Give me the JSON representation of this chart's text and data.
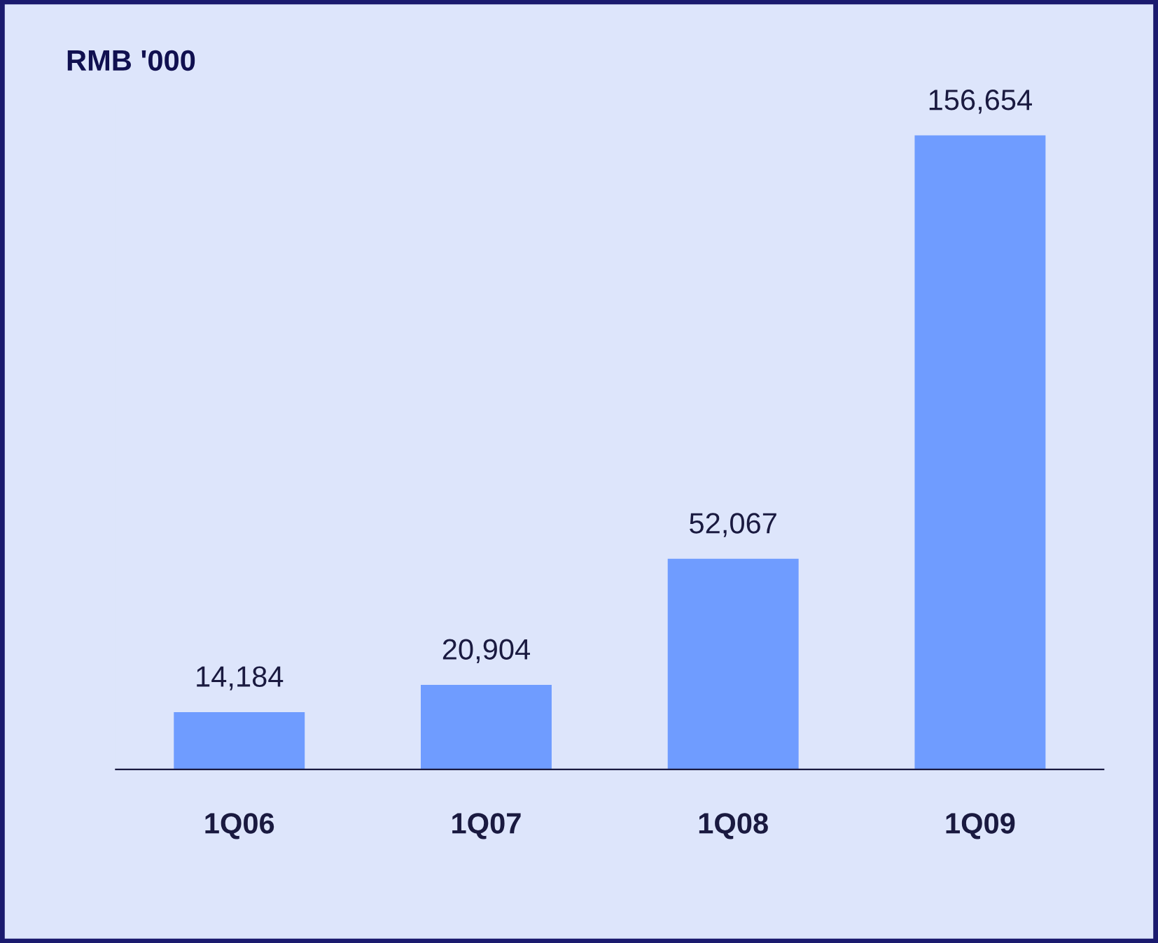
{
  "chart_data": {
    "type": "bar",
    "title": "RMB '000",
    "categories": [
      "1Q06",
      "1Q07",
      "1Q08",
      "1Q09"
    ],
    "values": [
      14184,
      20904,
      52067,
      156654
    ],
    "color": "#6f9cff",
    "value_labels": [
      "14,184",
      "20,904",
      "52,067",
      "156,654"
    ],
    "grid": false,
    "legend": false
  }
}
